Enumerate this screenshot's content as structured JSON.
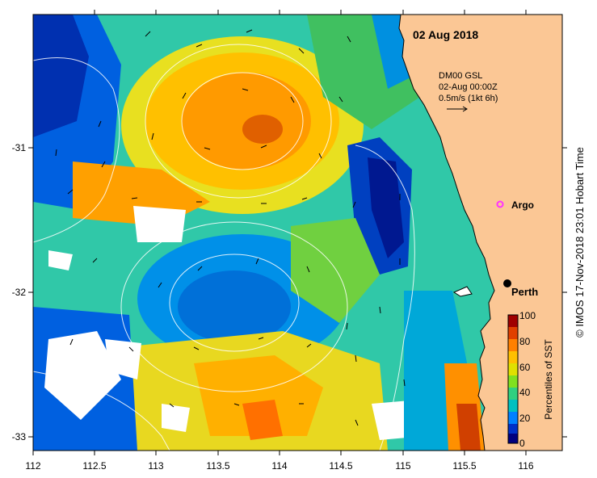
{
  "map": {
    "date_label": "02 Aug 2018",
    "model_label": "DM00 GSL",
    "time_label": "02-Aug 00:00Z",
    "vector_label": "0.5m/s (1kt 6h)",
    "argo_label": "Argo",
    "city_label": "Perth",
    "credit": "© IMOS 17-Nov-2018 23:01 Hobart Time",
    "x_ticks": [
      "112",
      "112.5",
      "113",
      "113.5",
      "114",
      "114.5",
      "115",
      "115.5",
      "116"
    ],
    "y_ticks": [
      "-31",
      "-32",
      "-33"
    ],
    "land_color": "#fbc795",
    "argo_color": "#ff33ff"
  },
  "colorbar": {
    "label": "Percentiles of SST",
    "ticks": [
      "0",
      "20",
      "40",
      "60",
      "80",
      "100"
    ],
    "colors": [
      "#00007f",
      "#0030c8",
      "#0080ff",
      "#00c0c0",
      "#30d080",
      "#80e020",
      "#e0e000",
      "#ffc000",
      "#ff8000",
      "#e04000",
      "#a00000"
    ]
  }
}
